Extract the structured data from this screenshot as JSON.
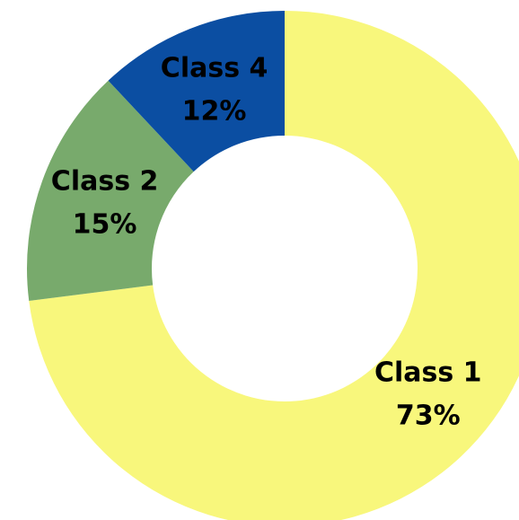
{
  "chart_data": {
    "type": "donut",
    "categories": [
      "Class 1",
      "Class 2",
      "Class 4"
    ],
    "values": [
      73,
      15,
      12
    ],
    "value_labels": [
      "73%",
      "15%",
      "12%"
    ],
    "colors": [
      "#f8f77c",
      "#78aa6c",
      "#0b4ea2"
    ]
  }
}
